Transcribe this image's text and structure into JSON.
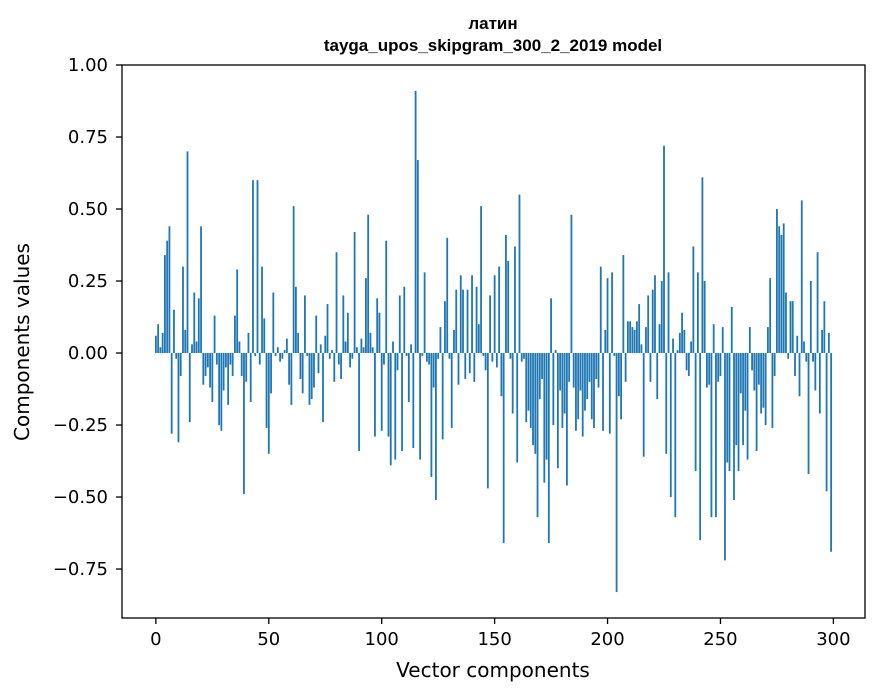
{
  "chart_data": {
    "type": "bar",
    "title": "латин",
    "subtitle": "tayga_upos_skipgram_300_2_2019 model",
    "xlabel": "Vector components",
    "ylabel": "Components values",
    "xlim": [
      -15,
      314
    ],
    "ylim": [
      -0.92,
      1.0
    ],
    "xticks": [
      0,
      50,
      100,
      150,
      200,
      250,
      300
    ],
    "xtick_labels": [
      "0",
      "50",
      "100",
      "150",
      "200",
      "250",
      "300"
    ],
    "yticks": [
      -0.75,
      -0.5,
      -0.25,
      0.0,
      0.25,
      0.5,
      0.75,
      1.0
    ],
    "ytick_labels": [
      "−0.75",
      "−0.50",
      "−0.25",
      "0.00",
      "0.25",
      "0.50",
      "0.75",
      "1.00"
    ],
    "grid": false,
    "bar_color": "#1f77b4",
    "values": [
      0.06,
      0.1,
      0.02,
      0.07,
      0.34,
      0.39,
      0.44,
      -0.28,
      0.15,
      -0.02,
      -0.31,
      -0.08,
      0.3,
      0.08,
      0.7,
      -0.24,
      0.03,
      0.21,
      0.04,
      0.19,
      0.44,
      -0.11,
      -0.08,
      -0.05,
      -0.12,
      -0.17,
      0.13,
      -0.04,
      -0.25,
      -0.27,
      -0.13,
      -0.05,
      -0.18,
      -0.04,
      -0.08,
      0.13,
      0.29,
      0.04,
      -0.08,
      -0.49,
      -0.1,
      0.07,
      -0.17,
      0.6,
      -0.01,
      0.6,
      -0.04,
      0.3,
      0.12,
      -0.26,
      -0.35,
      -0.14,
      0.21,
      -0.01,
      0.02,
      -0.03,
      -0.02,
      0.01,
      0.05,
      -0.11,
      -0.18,
      0.51,
      0.23,
      0.07,
      -0.09,
      -0.14,
      0.2,
      -0.01,
      -0.18,
      -0.16,
      -0.12,
      0.13,
      -0.07,
      0.03,
      -0.24,
      0.06,
      0.17,
      -0.02,
      0.01,
      -0.1,
      0.35,
      -0.04,
      -0.09,
      0.2,
      0.04,
      0.14,
      -0.05,
      -0.02,
      0.42,
      0.02,
      -0.34,
      0.05,
      0.02,
      0.26,
      0.48,
      0.07,
      0.02,
      -0.29,
      0.19,
      0.14,
      -0.27,
      -0.04,
      0.39,
      -0.29,
      -0.39,
      0.04,
      -0.37,
      -0.06,
      0.2,
      -0.34,
      0.23,
      -0.01,
      -0.17,
      0.03,
      -0.33,
      0.91,
      0.67,
      -0.37,
      -0.01,
      0.28,
      -0.03,
      -0.04,
      -0.43,
      -0.12,
      -0.51,
      -0.02,
      0.09,
      -0.3,
      0.18,
      0.4,
      -0.02,
      -0.26,
      0.08,
      0.22,
      -0.11,
      0.27,
      0.22,
      -0.09,
      0.22,
      -0.07,
      0.27,
      -0.1,
      0.23,
      0.1,
      0.51,
      -0.01,
      -0.06,
      -0.47,
      0.2,
      -0.03,
      0.27,
      -0.05,
      0.3,
      -0.15,
      -0.66,
      0.41,
      0.32,
      -0.02,
      -0.21,
      0.37,
      -0.38,
      0.55,
      -0.03,
      -0.02,
      -0.24,
      -0.2,
      -0.26,
      -0.32,
      -0.35,
      -0.57,
      -0.16,
      -0.09,
      -0.45,
      -0.37,
      -0.66,
      0.19,
      -0.25,
      0.01,
      -0.4,
      -0.13,
      -0.26,
      -0.21,
      -0.46,
      -0.1,
      0.48,
      -0.12,
      -0.27,
      -0.23,
      -0.13,
      -0.29,
      -0.2,
      -0.16,
      -0.1,
      -0.23,
      -0.26,
      -0.09,
      -0.12,
      0.3,
      -0.27,
      0.08,
      0.26,
      -0.28,
      0.28,
      -0.01,
      -0.83,
      -0.15,
      -0.23,
      0.34,
      -0.1,
      0.11,
      0.11,
      0.09,
      0.08,
      0.11,
      0.17,
      0.03,
      -0.36,
      0.09,
      0.2,
      -0.1,
      0.22,
      0.27,
      -0.16,
      0.1,
      0.25,
      0.72,
      -0.35,
      0.28,
      -0.5,
      0.05,
      -0.57,
      0.01,
      0.07,
      0.14,
      0.08,
      -0.06,
      -0.08,
      0.04,
      0.37,
      -0.41,
      0.28,
      -0.65,
      0.61,
      0.25,
      -0.12,
      -0.11,
      -0.57,
      0.1,
      -0.57,
      -0.1,
      -0.08,
      0.09,
      -0.72,
      -0.38,
      -0.41,
      0.16,
      -0.51,
      -0.32,
      -0.41,
      -0.14,
      -0.32,
      -0.2,
      -0.37,
      0.09,
      -0.06,
      -0.13,
      -0.34,
      -0.11,
      -0.21,
      -0.19,
      -0.25,
      0.09,
      0.26,
      -0.26,
      -0.08,
      0.5,
      0.44,
      0.41,
      0.45,
      0.21,
      -0.02,
      0.18,
      0.18,
      -0.08,
      0.06,
      -0.15,
      0.53,
      0.04,
      -0.03,
      -0.42,
      0.25,
      -0.03,
      -0.13,
      0.35,
      -0.21,
      0.08,
      0.18,
      -0.48,
      0.07,
      -0.69
    ]
  }
}
